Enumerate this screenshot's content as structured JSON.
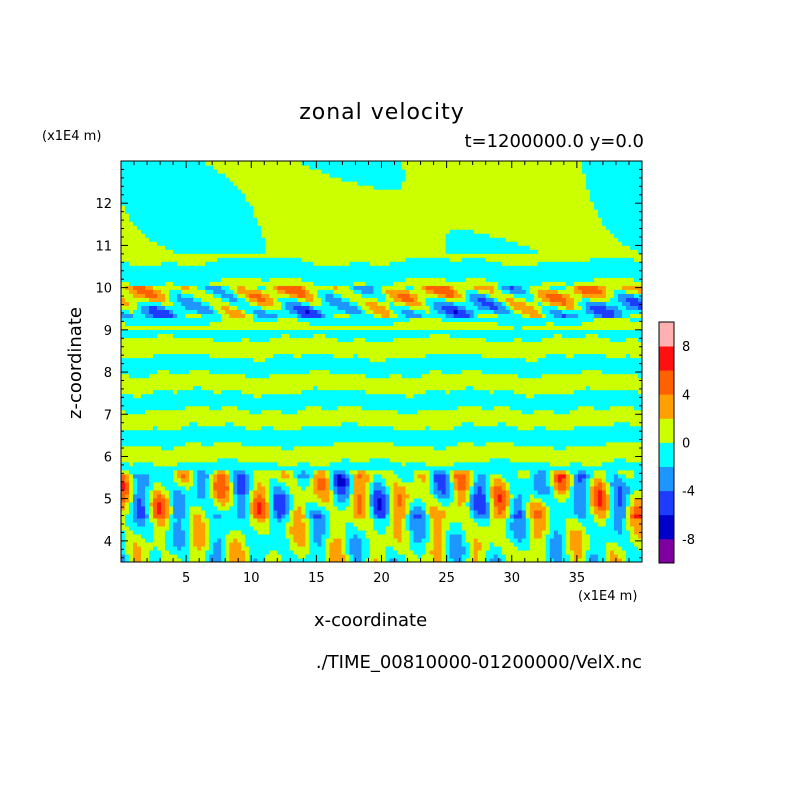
{
  "chart_data": {
    "type": "heatmap",
    "title": "zonal velocity",
    "subtitle": "t=1200000.0 y=0.0",
    "xlabel": "x-coordinate",
    "ylabel": "z-coordinate",
    "x_unit": "(x1E4 m)",
    "y_unit": "(x1E4 m)",
    "source": "./TIME_00810000-01200000/VelX.nc",
    "xlim": [
      0,
      40
    ],
    "ylim": [
      3.5,
      13
    ],
    "x_ticks": [
      5,
      10,
      15,
      20,
      25,
      30,
      35
    ],
    "y_ticks": [
      4,
      5,
      6,
      7,
      8,
      9,
      10,
      11,
      12
    ],
    "x_tick_labels": [
      "5",
      "10",
      "15",
      "20",
      "25",
      "30",
      "35"
    ],
    "y_tick_labels": [
      "4",
      "5",
      "6",
      "7",
      "8",
      "9",
      "10",
      "11",
      "12"
    ],
    "colorbar": {
      "levels": [
        -10,
        -8,
        -6,
        -4,
        -2,
        0,
        2,
        4,
        6,
        8,
        10
      ],
      "colors": [
        "#7f00a0",
        "#0000c8",
        "#1e3cff",
        "#1e96ff",
        "#00ffff",
        "#ccff00",
        "#ffa000",
        "#ff6000",
        "#ff1010",
        "#ffb0b0"
      ],
      "tick_values": [
        8,
        4,
        0,
        -4,
        -8
      ],
      "tick_labels": [
        "8",
        "4",
        "0",
        "-4",
        "-8"
      ]
    }
  }
}
